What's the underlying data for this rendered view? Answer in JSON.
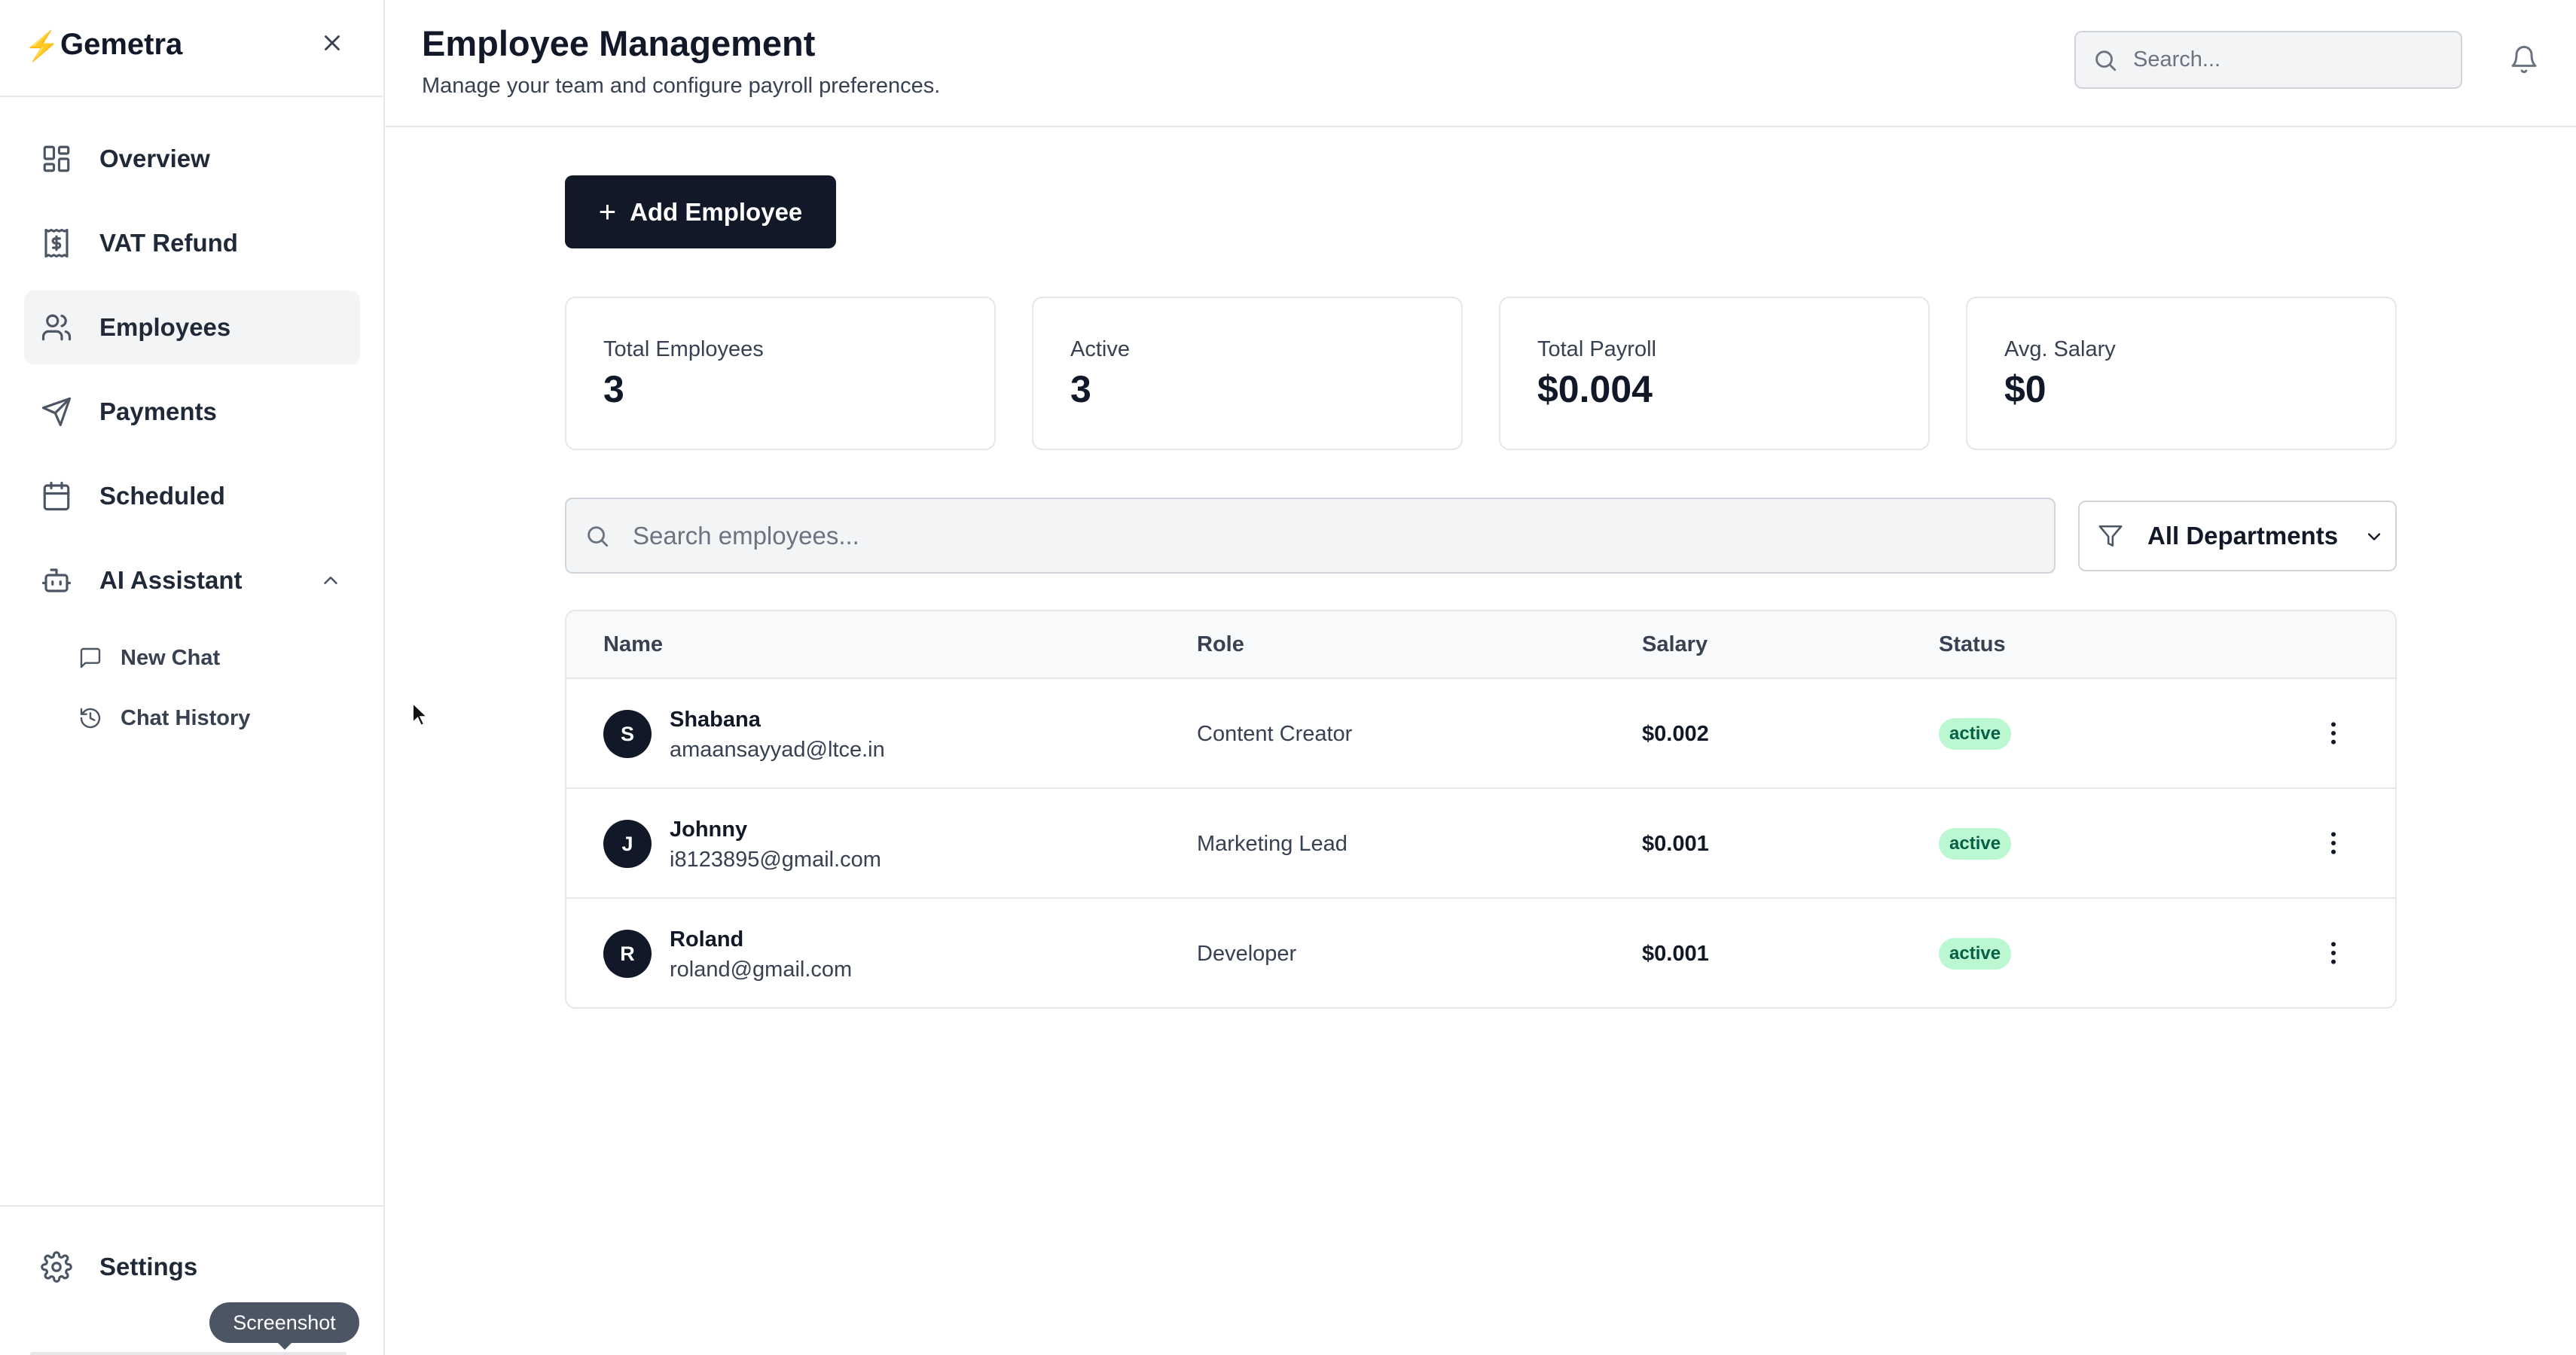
{
  "brand": {
    "name": "Gemetra",
    "bolt": "⚡"
  },
  "sidebar": {
    "items": [
      {
        "label": "Overview",
        "icon": "layout-grid-icon"
      },
      {
        "label": "VAT Refund",
        "icon": "receipt-dollar-icon"
      },
      {
        "label": "Employees",
        "icon": "users-icon",
        "active": true
      },
      {
        "label": "Payments",
        "icon": "send-icon"
      },
      {
        "label": "Scheduled",
        "icon": "calendar-icon"
      },
      {
        "label": "AI Assistant",
        "icon": "bot-icon",
        "expanded": true
      }
    ],
    "sub_items": [
      {
        "label": "New Chat",
        "icon": "message-square-icon"
      },
      {
        "label": "Chat History",
        "icon": "history-icon"
      }
    ],
    "settings_label": "Settings",
    "tooltip": "Screenshot"
  },
  "header": {
    "title": "Employee Management",
    "subtitle": "Manage your team and configure payroll preferences.",
    "search_placeholder": "Search..."
  },
  "main": {
    "add_button_label": "Add Employee",
    "add_button_icon": "+",
    "stats": [
      {
        "label": "Total Employees",
        "value": "3"
      },
      {
        "label": "Active",
        "value": "3"
      },
      {
        "label": "Total Payroll",
        "value": "$0.004"
      },
      {
        "label": "Avg. Salary",
        "value": "$0"
      }
    ],
    "employee_search_placeholder": "Search employees...",
    "department_filter": "All Departments",
    "table": {
      "headers": [
        "Name",
        "Role",
        "Salary",
        "Status"
      ],
      "rows": [
        {
          "initial": "S",
          "name": "Shabana",
          "email": "amaansayyad@ltce.in",
          "role": "Content Creator",
          "salary": "$0.002",
          "status": "active"
        },
        {
          "initial": "J",
          "name": "Johnny",
          "email": "i8123895@gmail.com",
          "role": "Marketing Lead",
          "salary": "$0.001",
          "status": "active"
        },
        {
          "initial": "R",
          "name": "Roland",
          "email": "roland@gmail.com",
          "role": "Developer",
          "salary": "$0.001",
          "status": "active"
        }
      ]
    }
  },
  "colors": {
    "primary": "#111827",
    "active_bg": "#f3f4f6",
    "badge_bg": "#bbf7d0",
    "badge_text": "#065f46",
    "bolt": "#f59e0b"
  }
}
